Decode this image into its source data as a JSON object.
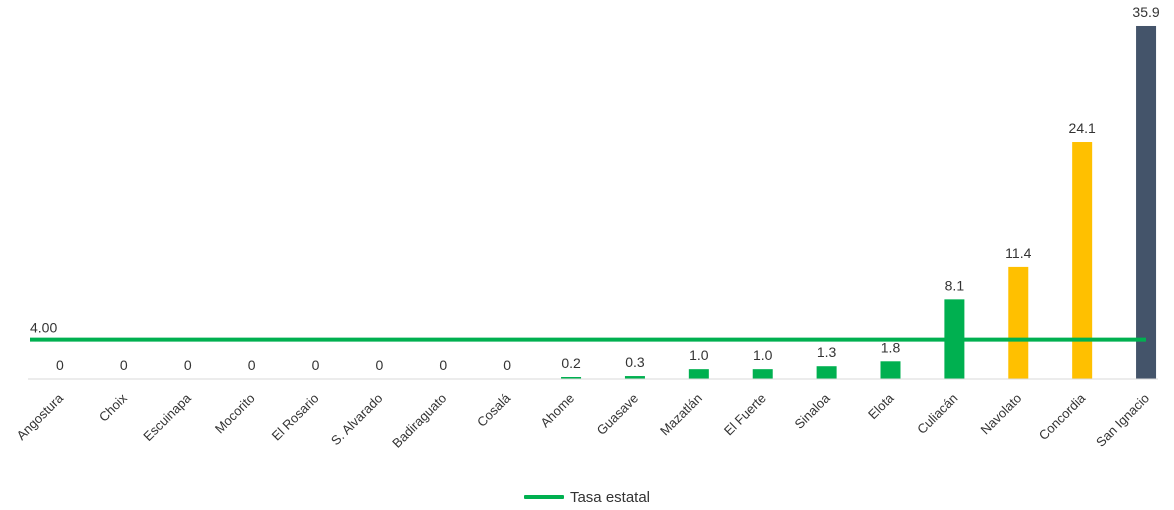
{
  "chart_data": {
    "type": "bar",
    "categories": [
      "Angostura",
      "Choix",
      "Escuinapa",
      "Mocorito",
      "El Rosario",
      "S. Alvarado",
      "Badiraguato",
      "Cosalá",
      "Ahome",
      "Guasave",
      "Mazatlán",
      "El Fuerte",
      "Sinaloa",
      "Elota",
      "Culiacán",
      "Navolato",
      "Concordia",
      "San Ignacio"
    ],
    "values": [
      0,
      0,
      0,
      0,
      0,
      0,
      0,
      0,
      0.2,
      0.3,
      1.0,
      1.0,
      1.3,
      1.8,
      8.1,
      11.4,
      24.1,
      35.9
    ],
    "value_labels": [
      "0",
      "0",
      "0",
      "0",
      "0",
      "0",
      "0",
      "0",
      "0.2",
      "0.3",
      "1.0",
      "1.0",
      "1.3",
      "1.8",
      "8.1",
      "11.4",
      "24.1",
      "35.9"
    ],
    "bar_colors": [
      "#00b050",
      "#00b050",
      "#00b050",
      "#00b050",
      "#00b050",
      "#00b050",
      "#00b050",
      "#00b050",
      "#00b050",
      "#00b050",
      "#00b050",
      "#00b050",
      "#00b050",
      "#00b050",
      "#00b050",
      "#ffc000",
      "#ffc000",
      "#44546a"
    ],
    "reference_line": {
      "name": "Tasa estatal",
      "value": 4.0,
      "label": "4.00",
      "color": "#00b050"
    },
    "title": "",
    "xlabel": "",
    "ylabel": "",
    "ylim": [
      0,
      36
    ],
    "grid": false,
    "legend_position": "bottom"
  }
}
